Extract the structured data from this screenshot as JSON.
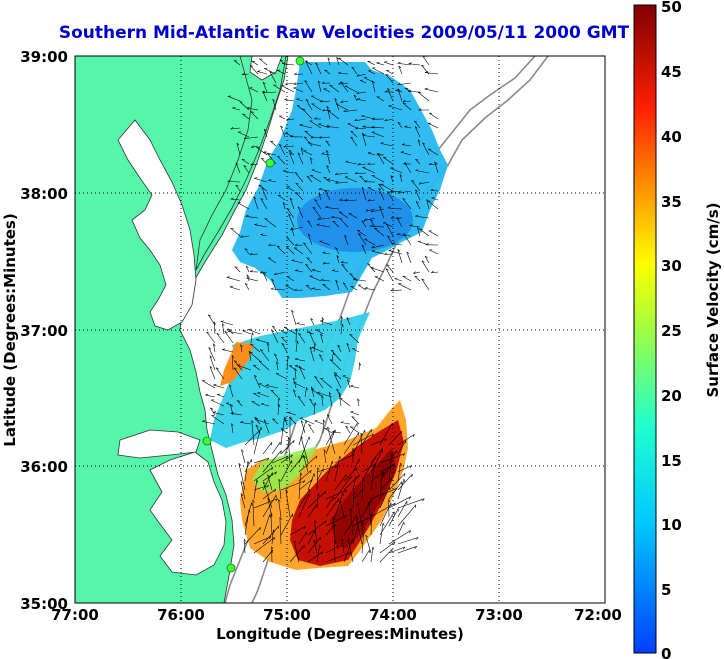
{
  "title": "Southern Mid-Atlantic Raw Velocities 2009/05/11 2000 GMT",
  "title_color": "#0000cc",
  "map": {
    "x_axis_label": "Longitude (Degrees:Minutes)",
    "y_axis_label": "Latitude (Degrees:Minutes)",
    "lon_range": [
      -77,
      -72
    ],
    "lat_range": [
      35,
      39
    ],
    "x_ticks": [
      "77:00",
      "76:00",
      "75:00",
      "74:00",
      "73:00",
      "72:00"
    ],
    "y_ticks": [
      "39:00",
      "38:00",
      "37:00",
      "36:00",
      "35:00"
    ],
    "grid": "dotted",
    "land_color": "#55f5aa",
    "ocean_color": "#ffffff",
    "radar_station_color": "#40ff40"
  },
  "colorbar": {
    "label": "Surface Velocity (cm/s)",
    "min": 0,
    "max": 50,
    "ticks": [
      "50",
      "45",
      "40",
      "35",
      "30",
      "25",
      "20",
      "15",
      "10",
      "5",
      "0"
    ],
    "colormap": "jet"
  }
}
